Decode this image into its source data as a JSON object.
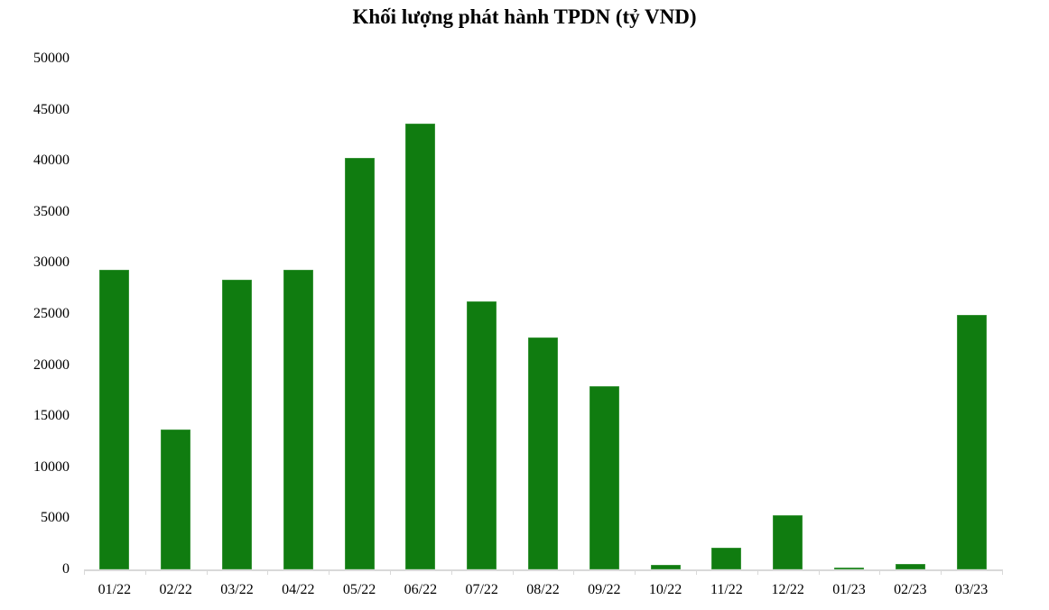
{
  "chart_data": {
    "type": "bar",
    "title": "Khối lượng phát hành TPDN (tỷ VND)",
    "xlabel": "",
    "ylabel": "",
    "categories": [
      "01/22",
      "02/22",
      "03/22",
      "04/22",
      "05/22",
      "06/22",
      "07/22",
      "08/22",
      "09/22",
      "10/22",
      "11/22",
      "12/22",
      "01/23",
      "02/23",
      "03/23"
    ],
    "values": [
      29300,
      13700,
      28400,
      29300,
      40300,
      43600,
      26200,
      22700,
      17900,
      400,
      2100,
      5300,
      150,
      550,
      24900
    ],
    "ylim": [
      0,
      50000
    ],
    "yticks": [
      0,
      5000,
      10000,
      15000,
      20000,
      25000,
      30000,
      35000,
      40000,
      45000,
      50000
    ],
    "ytick_labels": [
      "0",
      "5000",
      "10000",
      "15000",
      "20000",
      "25000",
      "30000",
      "35000",
      "40000",
      "45000",
      "50000"
    ],
    "grid": false,
    "legend": null,
    "bar_color": "#107c10"
  }
}
